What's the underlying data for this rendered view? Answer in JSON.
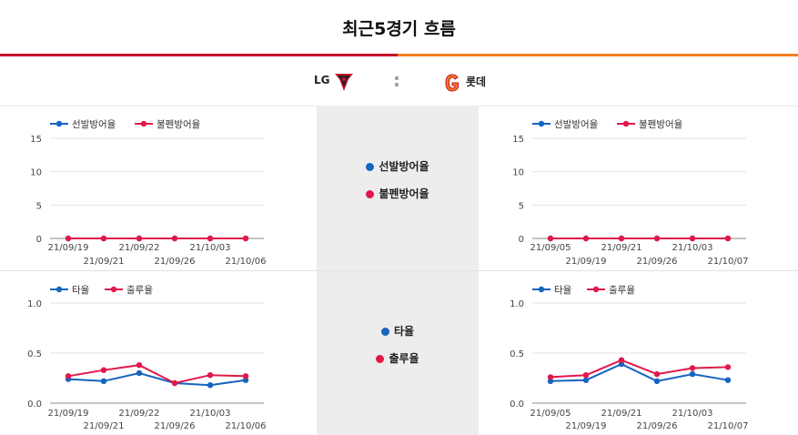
{
  "header": {
    "title": "최근5경기 흐름"
  },
  "teams": {
    "home": "LG",
    "separator": ":",
    "away": "롯데"
  },
  "colors": {
    "starter": "#1565c0",
    "bullpen": "#e0194b",
    "lg_bar": "#c8102e",
    "lotte_bar": "#f07f1c"
  },
  "middle_legend": {
    "pitching": [
      "선발방어율",
      "불펜방어율"
    ],
    "batting": [
      "타율",
      "출루율"
    ]
  },
  "chart_data": [
    {
      "type": "line",
      "team": "LG",
      "x": [
        "21/09/19",
        "21/09/21",
        "21/09/22",
        "21/09/26",
        "21/10/03",
        "21/10/06"
      ],
      "yticks": [
        0,
        5,
        10,
        15
      ],
      "ylim": [
        0,
        15
      ],
      "series": [
        {
          "name": "선발방어율",
          "values": [
            0,
            0,
            0,
            0,
            0,
            0
          ]
        },
        {
          "name": "불펜방어율",
          "values": [
            0,
            0,
            0,
            0,
            0,
            0
          ]
        }
      ]
    },
    {
      "type": "line",
      "team": "롯데",
      "x": [
        "21/09/05",
        "21/09/19",
        "21/09/21",
        "21/09/26",
        "21/10/03",
        "21/10/07"
      ],
      "yticks": [
        0,
        5,
        10,
        15
      ],
      "ylim": [
        0,
        15
      ],
      "series": [
        {
          "name": "선발방어율",
          "values": [
            0,
            0,
            0,
            0,
            0,
            0
          ]
        },
        {
          "name": "불펜방어율",
          "values": [
            0,
            0,
            0,
            0,
            0,
            0
          ]
        }
      ]
    },
    {
      "type": "line",
      "team": "LG",
      "x": [
        "21/09/19",
        "21/09/21",
        "21/09/22",
        "21/09/26",
        "21/10/03",
        "21/10/06"
      ],
      "yticks": [
        "0.0",
        "0.5",
        "1.0"
      ],
      "ylim": [
        0,
        1
      ],
      "series": [
        {
          "name": "타율",
          "values": [
            0.24,
            0.22,
            0.3,
            0.2,
            0.18,
            0.23
          ]
        },
        {
          "name": "출루율",
          "values": [
            0.27,
            0.33,
            0.38,
            0.2,
            0.28,
            0.27
          ]
        }
      ]
    },
    {
      "type": "line",
      "team": "롯데",
      "x": [
        "21/09/05",
        "21/09/19",
        "21/09/21",
        "21/09/26",
        "21/10/03",
        "21/10/07"
      ],
      "yticks": [
        "0.0",
        "0.5",
        "1.0"
      ],
      "ylim": [
        0,
        1
      ],
      "series": [
        {
          "name": "타율",
          "values": [
            0.22,
            0.23,
            0.39,
            0.22,
            0.29,
            0.23
          ]
        },
        {
          "name": "출루율",
          "values": [
            0.26,
            0.28,
            0.43,
            0.29,
            0.35,
            0.36
          ]
        }
      ]
    }
  ]
}
